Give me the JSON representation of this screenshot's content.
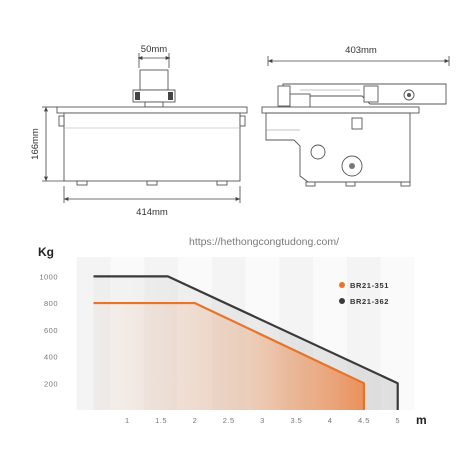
{
  "technical_drawing": {
    "dims": {
      "top_width": "50mm",
      "side_length": "403mm",
      "height": "166mm",
      "bottom_width": "414mm"
    }
  },
  "watermark": "https://hethongcongtudong.com/",
  "chart_data": {
    "type": "line",
    "title": "",
    "xlabel": "m",
    "ylabel": "Kg",
    "x_ticks": [
      "1",
      "1.5",
      "2",
      "2.5",
      "3",
      "3.5",
      "4",
      "4.5",
      "5"
    ],
    "y_ticks": [
      "200",
      "400",
      "600",
      "800",
      "1000"
    ],
    "xlim": [
      0.3,
      5.3
    ],
    "ylim": [
      0,
      1040
    ],
    "grid": "alternating vertical bands",
    "legend_position": "right",
    "series": [
      {
        "name": "BR21-351",
        "color": "#e8742a",
        "x": [
          0.5,
          1.5,
          2.0,
          4.5,
          4.5
        ],
        "y": [
          800,
          800,
          800,
          200,
          0
        ]
      },
      {
        "name": "BR21-362",
        "color": "#3a3a3a",
        "x": [
          0.5,
          1.5,
          1.6,
          5.0,
          5.0
        ],
        "y": [
          1000,
          1000,
          1000,
          200,
          0
        ]
      }
    ]
  }
}
